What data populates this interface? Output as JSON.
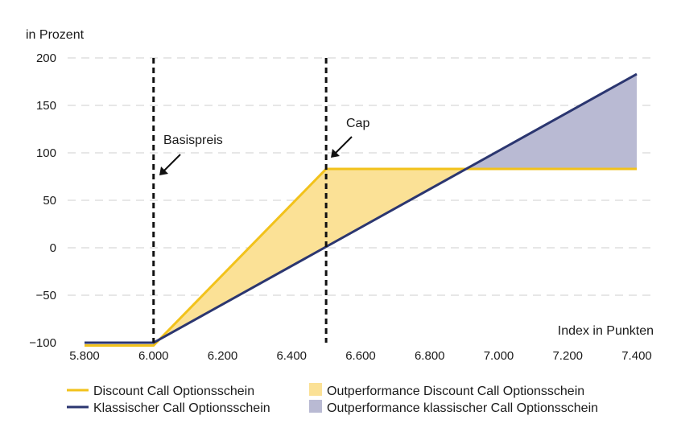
{
  "chart_data": {
    "type": "line",
    "ylabel": "in Prozent",
    "xlabel": "Index in Punkten",
    "xlim": [
      5800,
      7400
    ],
    "ylim": [
      -100,
      200
    ],
    "x_ticks": [
      "5.800",
      "6.000",
      "6.200",
      "6.400",
      "6.600",
      "6.800",
      "7.000",
      "7.200",
      "7.400"
    ],
    "x_tick_values": [
      5800,
      6000,
      6200,
      6400,
      6600,
      6800,
      7000,
      7200,
      7400
    ],
    "y_ticks": [
      "200",
      "150",
      "100",
      "50",
      "0",
      "−50",
      "−100"
    ],
    "y_tick_values": [
      200,
      150,
      100,
      50,
      0,
      -50,
      -100
    ],
    "grid": "horizontal dashed",
    "series": [
      {
        "name": "Discount Call Optionsschein",
        "color": "#f2c21b",
        "points": [
          [
            5800,
            -103
          ],
          [
            6000,
            -103
          ],
          [
            6500,
            83
          ],
          [
            7400,
            83
          ]
        ]
      },
      {
        "name": "Klassischer Call Optionsschein",
        "color": "#2b3670",
        "points": [
          [
            5800,
            -100
          ],
          [
            6000,
            -100
          ],
          [
            7400,
            183
          ]
        ]
      }
    ],
    "areas": [
      {
        "name": "Outperformance Discount Call Optionsschein",
        "color": "#fbe196",
        "points": [
          [
            6000,
            -103
          ],
          [
            6500,
            83
          ],
          [
            6905,
            83
          ],
          [
            6500,
            0
          ],
          [
            6000,
            -100
          ]
        ]
      },
      {
        "name": "Outperformance klassischer Call Optionsschein",
        "color": "#b9bad3",
        "points": [
          [
            6905,
            83
          ],
          [
            7400,
            83
          ],
          [
            7400,
            183
          ]
        ]
      }
    ],
    "markers": [
      {
        "label": "Basispreis",
        "x": 6000
      },
      {
        "label": "Cap",
        "x": 6500
      }
    ],
    "legend": "bottom"
  }
}
